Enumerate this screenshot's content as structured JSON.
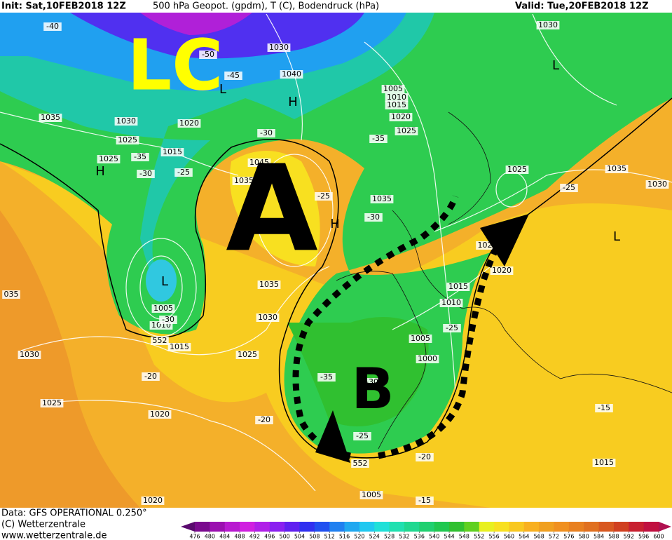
{
  "header": {
    "init": "Init: Sat,10FEB2018 12Z",
    "title": "500 hPa Geopot. (gpdm), T (C), Bodendruck (hPa)",
    "valid": "Valid: Tue,20FEB2018 12Z"
  },
  "annotations": [
    "LC",
    "A",
    "B"
  ],
  "labels": [
    "-40",
    "-50",
    "-45",
    "L",
    "1030",
    "1040",
    "H",
    "1035",
    "1030",
    "1020",
    "1025",
    "1015",
    "-35",
    "1025",
    "H",
    "-30",
    "-25",
    "1045",
    "1035",
    "-30",
    "-25",
    "H",
    "104",
    "-30",
    "1035",
    "1005",
    "1010",
    "1015",
    "1020",
    "1025",
    "-35",
    "1030",
    "L",
    "1025",
    "1035",
    "-25",
    "1030",
    "L",
    "102",
    "1020",
    "1035",
    "L",
    "1005",
    "1010",
    "-30",
    "552",
    "1015",
    "1030",
    "1025",
    "1015",
    "1010",
    "-25",
    "1005",
    "1000",
    "-35",
    "-30",
    "-20",
    "-20",
    "1030",
    "1025",
    "1020",
    "-25",
    "552",
    "-20",
    "1005",
    "-15",
    "-15",
    "1015",
    "1020",
    "035"
  ],
  "footer": {
    "data": "Data: GFS OPERATIONAL 0.250°",
    "copyright": "(C) Wetterzentrale",
    "url": "www.wetterzentrale.de"
  },
  "colorbar": {
    "ticks": [
      476,
      480,
      484,
      488,
      492,
      496,
      500,
      504,
      508,
      512,
      516,
      520,
      524,
      528,
      532,
      536,
      540,
      544,
      548,
      552,
      556,
      560,
      564,
      568,
      572,
      576,
      580,
      584,
      588,
      592,
      596,
      600
    ],
    "colors": [
      "#5a0a6e",
      "#7a0a8e",
      "#9b10b0",
      "#b81ad0",
      "#d020e0",
      "#b020e8",
      "#8a20f0",
      "#6020f0",
      "#3030f0",
      "#2050f0",
      "#2080f0",
      "#20a8f0",
      "#20c8f0",
      "#20e0d8",
      "#20e0b0",
      "#20d890",
      "#20d070",
      "#20c850",
      "#30c030",
      "#60d020",
      "#e8f020",
      "#f8e020",
      "#f8c820",
      "#f8b020",
      "#f0a020",
      "#f09020",
      "#e88020",
      "#e07020",
      "#d85820",
      "#d04020",
      "#c82030",
      "#c01040",
      "#b01050"
    ]
  }
}
